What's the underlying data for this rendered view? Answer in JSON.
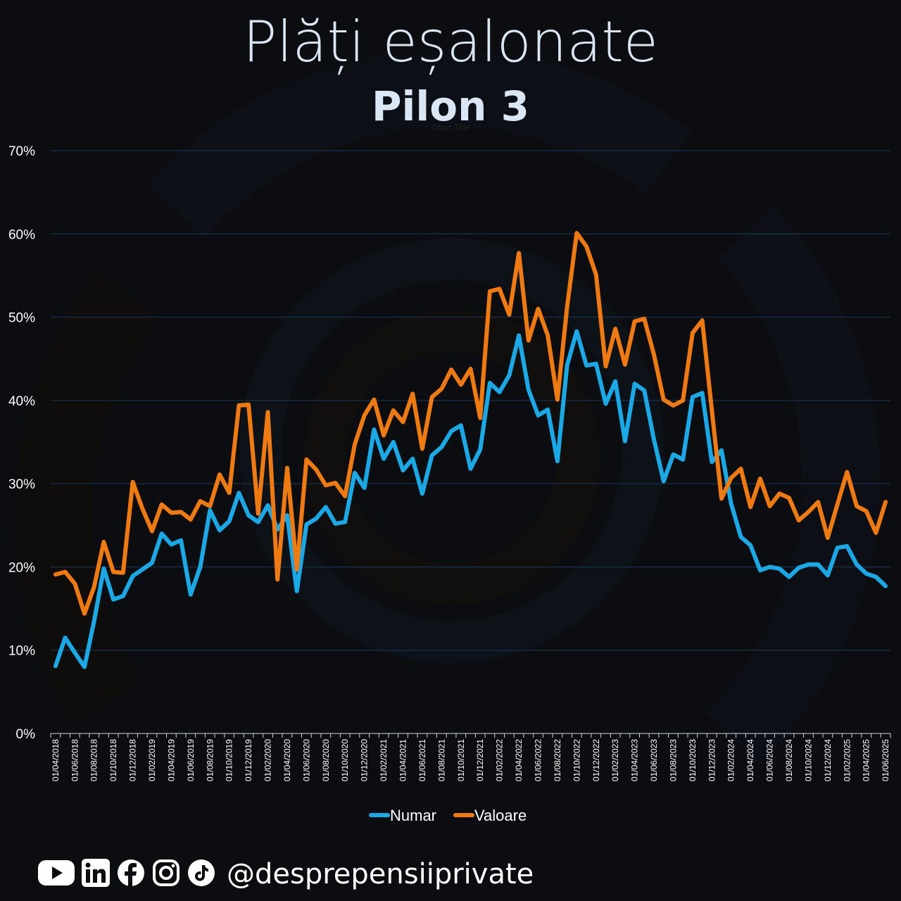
{
  "header": {
    "title": "Plăți eșalonate",
    "subtitle": "Pilon 3",
    "chart_title_small": "Chart Title"
  },
  "footer": {
    "handle": "@desprepensiiprivate",
    "icons": [
      "youtube-icon",
      "linkedin-icon",
      "facebook-icon",
      "instagram-icon",
      "tiktok-icon"
    ]
  },
  "colors": {
    "numar": "#1aa9e6",
    "valoare": "#f07a12",
    "grid": "#1d3a5c",
    "background": "#0b0d10"
  },
  "chart_data": {
    "type": "line",
    "title": "Chart Title",
    "xlabel": "",
    "ylabel": "",
    "ylim": [
      0,
      70
    ],
    "yticks": [
      "0%",
      "10%",
      "20%",
      "30%",
      "40%",
      "50%",
      "60%",
      "70%"
    ],
    "grid": true,
    "legend": "bottom",
    "x_start": "01/04/2018",
    "x_end": "01/06/2025",
    "x_tick_labels": [
      "01/04/2018",
      "01/06/2018",
      "01/08/2018",
      "01/10/2018",
      "01/12/2018",
      "01/02/2019",
      "01/04/2019",
      "01/06/2019",
      "01/08/2019",
      "01/10/2019",
      "01/12/2019",
      "01/02/2020",
      "01/04/2020",
      "01/06/2020",
      "01/08/2020",
      "01/10/2020",
      "01/12/2020",
      "01/02/2021",
      "01/04/2021",
      "01/06/2021",
      "01/08/2021",
      "01/10/2021",
      "01/12/2021",
      "01/02/2022",
      "01/04/2022",
      "01/06/2022",
      "01/08/2022",
      "01/10/2022",
      "01/12/2022",
      "01/02/2023",
      "01/04/2023",
      "01/06/2023",
      "01/08/2023",
      "01/10/2023",
      "01/12/2023",
      "01/02/2024",
      "01/04/2024",
      "01/06/2024",
      "01/08/2024",
      "01/10/2024",
      "01/12/2024",
      "01/02/2025",
      "01/04/2025",
      "01/06/2025"
    ],
    "series": [
      {
        "name": "Numar",
        "values": [
          8.1,
          11.5,
          9.7,
          8.0,
          13.5,
          19.8,
          16.1,
          16.5,
          18.9,
          19.7,
          20.5,
          24.0,
          22.7,
          23.2,
          16.7,
          20.0,
          26.8,
          24.4,
          25.5,
          28.9,
          26.2,
          25.4,
          27.4,
          24.5,
          26.2,
          17.1,
          25.1,
          25.8,
          27.2,
          25.2,
          25.4,
          31.3,
          29.5,
          36.5,
          33.0,
          35.0,
          31.6,
          33.0,
          28.8,
          33.4,
          34.4,
          36.3,
          37.0,
          31.8,
          34.1,
          42.1,
          41.0,
          43.0,
          47.8,
          41.3,
          38.2,
          38.9,
          32.7,
          44.2,
          48.3,
          44.2,
          44.4,
          39.6,
          42.3,
          35.1,
          42.0,
          41.2,
          35.3,
          30.3,
          33.5,
          32.9,
          40.4,
          40.9,
          32.6,
          34.0,
          27.6,
          23.6,
          22.6,
          19.6,
          20.0,
          19.8,
          18.8,
          19.9,
          20.3,
          20.3,
          19.0,
          22.3,
          22.5,
          20.3,
          19.2,
          18.8,
          17.7
        ]
      },
      {
        "name": "Valoare",
        "values": [
          19.1,
          19.4,
          18.0,
          14.4,
          17.6,
          23.0,
          19.4,
          19.3,
          30.2,
          27.0,
          24.3,
          27.5,
          26.5,
          26.6,
          25.7,
          27.9,
          27.3,
          31.1,
          28.9,
          39.4,
          39.5,
          26.4,
          38.6,
          18.5,
          31.9,
          19.7,
          32.9,
          31.7,
          29.8,
          30.1,
          28.5,
          34.7,
          38.2,
          40.1,
          35.8,
          38.8,
          37.4,
          40.8,
          34.2,
          40.4,
          41.4,
          43.7,
          41.9,
          43.8,
          37.9,
          53.1,
          53.4,
          50.3,
          57.7,
          47.2,
          51.0,
          47.8,
          40.1,
          51.2,
          60.1,
          58.5,
          55.1,
          44.1,
          48.6,
          44.3,
          49.5,
          49.8,
          45.5,
          40.1,
          39.4,
          40.0,
          48.1,
          49.6,
          38.8,
          28.2,
          30.7,
          31.8,
          27.2,
          30.6,
          27.3,
          28.8,
          28.3,
          25.6,
          26.6,
          27.8,
          23.5,
          27.5,
          31.4,
          27.3,
          26.7,
          24.1,
          27.8
        ]
      }
    ]
  }
}
